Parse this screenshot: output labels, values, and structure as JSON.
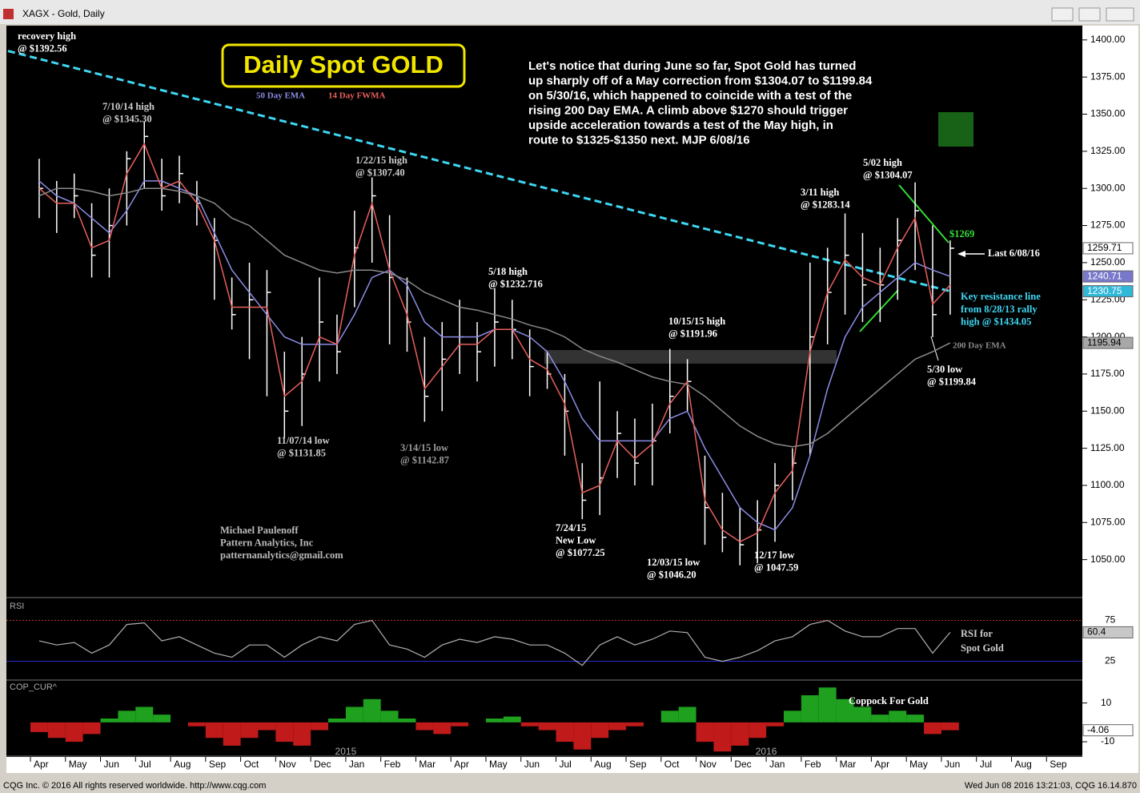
{
  "window": {
    "title": "XAGX - Gold, Daily"
  },
  "footer": {
    "left": "CQG Inc. © 2016 All rights reserved worldwide. http://www.cqg.com",
    "right": "Wed Jun 08 2016 13:21:03, CQG 16.14.870"
  },
  "chart_data": [
    {
      "type": "ohlc",
      "title": "Daily Spot GOLD",
      "categories": [
        "Apr",
        null,
        "May",
        null,
        "Jun",
        null,
        "Jul",
        null,
        "Aug",
        null,
        "Sep",
        null,
        "Oct",
        null,
        "Nov",
        null,
        "Dec",
        null,
        "Jan",
        null,
        "Feb",
        null,
        "Mar",
        null,
        "Apr",
        null,
        "May",
        null,
        "Jun",
        null,
        "Jul",
        null,
        "Aug",
        null,
        "Sep",
        null,
        "Oct",
        null,
        "Nov",
        null,
        "Dec",
        null,
        "Jan",
        null,
        "Feb",
        null,
        "Mar",
        null,
        "Apr",
        null,
        "May",
        null,
        "Jun",
        null,
        "Jul",
        null,
        "Aug",
        null,
        "Sep",
        null
      ],
      "year_labels": [
        "2015",
        "2016"
      ],
      "high": [
        1320,
        1305,
        1310,
        1290,
        1300,
        1325,
        1345.3,
        1320,
        1322,
        1305,
        1280,
        1240,
        1250,
        1245,
        1190,
        1200,
        1240,
        1215,
        1285,
        1307.4,
        1282,
        1240,
        1200,
        1210,
        1225,
        1210,
        1232.716,
        1225,
        1205,
        1190,
        1175,
        1115,
        1170,
        1150,
        1145,
        1155,
        1191.96,
        1185,
        1120,
        1095,
        1085,
        1090,
        1115,
        1125,
        1250,
        1260,
        1283.14,
        1270,
        1260,
        1280,
        1304.07,
        1275,
        1265,
        null,
        null,
        null,
        null,
        null,
        null,
        null
      ],
      "low": [
        1280,
        1270,
        1280,
        1240,
        1240,
        1275,
        1300,
        1285,
        1290,
        1275,
        1225,
        1205,
        1185,
        1160,
        1131.85,
        1140,
        1170,
        1175,
        1220,
        1250,
        1195,
        1190,
        1142.87,
        1150,
        1175,
        1170,
        1180,
        1185,
        1160,
        1165,
        1120,
        1077.25,
        1080,
        1105,
        1100,
        1100,
        1135,
        1150,
        1060,
        1055,
        1046.2,
        1047.59,
        1062,
        1090,
        1120,
        1195,
        1215,
        1210,
        1210,
        1225,
        1245,
        1199.84,
        1215,
        null,
        null,
        null,
        null,
        null,
        null,
        null
      ],
      "close": [
        1300,
        1290,
        1295,
        1255,
        1275,
        1320,
        1335,
        1295,
        1310,
        1290,
        1265,
        1215,
        1225,
        1230,
        1150,
        1175,
        1210,
        1190,
        1260,
        1295,
        1240,
        1210,
        1160,
        1185,
        1200,
        1190,
        1210,
        1205,
        1180,
        1175,
        1150,
        1090,
        1105,
        1135,
        1115,
        1130,
        1160,
        1170,
        1085,
        1065,
        1060,
        1070,
        1100,
        1115,
        1200,
        1230,
        1255,
        1235,
        1235,
        1265,
        1285,
        1215,
        1259.71,
        null,
        null,
        null,
        null,
        null,
        null,
        null
      ],
      "bar_color": "#ffffff",
      "series": [
        {
          "name": "50 Day EMA",
          "color": "#8c8ce6",
          "values": [
            1305,
            1295,
            1290,
            1280,
            1270,
            1285,
            1305,
            1305,
            1300,
            1295,
            1270,
            1245,
            1230,
            1215,
            1200,
            1195,
            1195,
            1195,
            1215,
            1240,
            1245,
            1235,
            1210,
            1200,
            1200,
            1200,
            1205,
            1205,
            1200,
            1190,
            1170,
            1145,
            1130,
            1130,
            1130,
            1130,
            1145,
            1150,
            1125,
            1105,
            1085,
            1075,
            1070,
            1085,
            1120,
            1165,
            1200,
            1220,
            1230,
            1240,
            1250,
            1245,
            1240.71,
            null,
            null,
            null,
            null,
            null,
            null,
            null
          ]
        },
        {
          "name": "14 Day FWMA",
          "color": "#e8605c",
          "values": [
            1300,
            1290,
            1290,
            1260,
            1265,
            1310,
            1330,
            1300,
            1305,
            1290,
            1265,
            1220,
            1220,
            1220,
            1160,
            1170,
            1200,
            1195,
            1255,
            1290,
            1245,
            1215,
            1165,
            1180,
            1195,
            1195,
            1205,
            1205,
            1185,
            1178,
            1155,
            1095,
            1100,
            1130,
            1118,
            1128,
            1155,
            1170,
            1090,
            1070,
            1062,
            1068,
            1095,
            1110,
            1190,
            1230,
            1252,
            1240,
            1235,
            1260,
            1280,
            1222,
            1235,
            null,
            null,
            null,
            null,
            null,
            null,
            null
          ]
        },
        {
          "name": "200 Day EMA",
          "color": "#8a8a8a",
          "values": [
            1295,
            1300,
            1300,
            1298,
            1295,
            1297,
            1300,
            1300,
            1298,
            1295,
            1290,
            1280,
            1275,
            1265,
            1255,
            1250,
            1245,
            1243,
            1245,
            1245,
            1243,
            1238,
            1230,
            1225,
            1220,
            1218,
            1215,
            1212,
            1208,
            1205,
            1200,
            1192,
            1187,
            1183,
            1178,
            1173,
            1170,
            1168,
            1160,
            1150,
            1140,
            1133,
            1128,
            1126,
            1128,
            1135,
            1145,
            1155,
            1165,
            1175,
            1185,
            1190,
            1195.94,
            null,
            null,
            null,
            null,
            null,
            null,
            null
          ]
        }
      ],
      "trendline": {
        "name": "Key resistance line",
        "color": "#3fd6f2",
        "values": [
          1392.56,
          1230.75
        ]
      },
      "ylim": [
        1025,
        1408
      ],
      "yticks": [
        {
          "value": 1050,
          "label": "1050.00"
        },
        {
          "value": 1075,
          "label": "1075.00"
        },
        {
          "value": 1100,
          "label": "1100.00"
        },
        {
          "value": 1125,
          "label": "1125.00"
        },
        {
          "value": 1150,
          "label": "1150.00"
        },
        {
          "value": 1175,
          "label": "1175.00"
        },
        {
          "value": 1200,
          "label": "1200.00"
        },
        {
          "value": 1225,
          "label": "1225.00"
        },
        {
          "value": 1250,
          "label": "1250.00"
        },
        {
          "value": 1275,
          "label": "1275.00"
        },
        {
          "value": 1300,
          "label": "1300.00"
        },
        {
          "value": 1325,
          "label": "1325.00"
        },
        {
          "value": 1350,
          "label": "1350.00"
        },
        {
          "value": 1375,
          "label": "1375.00"
        },
        {
          "value": 1400,
          "label": "1400.00"
        }
      ],
      "annotations": [
        {
          "lines": [
            "recovery high",
            "@ $1392.56"
          ],
          "color": "#ffffff"
        },
        {
          "lines": [
            "7/10/14 high",
            "@ $1345.30"
          ],
          "color": "#cccccc"
        },
        {
          "lines": [
            "1/22/15 high",
            "@ $1307.40"
          ],
          "color": "#cccccc"
        },
        {
          "lines": [
            "5/18 high",
            "@ $1232.716"
          ],
          "color": "#ffffff"
        },
        {
          "lines": [
            "10/15/15 high",
            "@ $1191.96"
          ],
          "color": "#ffffff"
        },
        {
          "lines": [
            "3/11 high",
            "@ $1283.14"
          ],
          "color": "#ffffff"
        },
        {
          "lines": [
            "5/02 high",
            "@ $1304.07"
          ],
          "color": "#ffffff"
        },
        {
          "lines": [
            "$1269"
          ],
          "color": "#33dd33"
        },
        {
          "lines": [
            "Last 6/08/16"
          ],
          "color": "#ffffff"
        },
        {
          "lines": [
            "from 8/28/13 rally",
            "high @ $1434.05"
          ],
          "color": "#3fd6f2"
        },
        {
          "lines": [
            "5/30 low",
            "@ $1199.84"
          ],
          "color": "#ffffff"
        },
        {
          "lines": [
            "11/07/14 low",
            "@ $1131.85"
          ],
          "color": "#cccccc"
        },
        {
          "lines": [
            "3/14/15 low",
            "@ $1142.87"
          ],
          "color": "#999999"
        },
        {
          "lines": [
            "7/24/15",
            "New Low",
            "@ $1077.25"
          ],
          "color": "#ffffff"
        },
        {
          "lines": [
            "12/03/15 low",
            "@ $1046.20"
          ],
          "color": "#ffffff"
        },
        {
          "lines": [
            "12/17 low",
            "@ 1047.59"
          ],
          "color": "#ffffff"
        },
        {
          "lines": [
            "Michael Paulenoff",
            "Pattern Analytics, Inc",
            "patternanalytics@gmail.com"
          ],
          "color": "#bbbbbb"
        },
        {
          "lines": [
            "Let's notice that during June so far, Spot Gold has turned",
            "up sharply off of a May correction from $1304.07 to $1199.84",
            "on 5/30/16, which happened to coincide with a test of the",
            "rising 200 Day EMA. A climb above $1270 should trigger",
            "upside acceleration towards a test of the May high, in",
            "route to $1325-$1350 next.  MJP 6/08/16"
          ],
          "color": "#ffffff"
        }
      ]
    },
    {
      "type": "line",
      "title": "RSI",
      "color": "#b0b0b0",
      "values": [
        50,
        45,
        48,
        35,
        45,
        70,
        72,
        50,
        55,
        45,
        35,
        30,
        45,
        45,
        30,
        45,
        55,
        50,
        70,
        75,
        45,
        40,
        30,
        45,
        52,
        48,
        55,
        52,
        45,
        45,
        35,
        20,
        45,
        55,
        45,
        52,
        62,
        60,
        30,
        25,
        30,
        38,
        50,
        55,
        70,
        75,
        62,
        55,
        55,
        65,
        65,
        35,
        60.4,
        null,
        null,
        null,
        null,
        null,
        null,
        null
      ],
      "ylim": [
        3,
        102
      ],
      "yticks": [
        25,
        75
      ],
      "level_colors": [
        "#2a2ad0",
        "#c03030"
      ],
      "annotations": [
        {
          "lines": [
            "RSI for",
            "Spot Gold"
          ],
          "color": "#cccccc"
        }
      ]
    },
    {
      "type": "histogram",
      "title": "COP_CUR^",
      "colors": {
        "positive": "#1fa01f",
        "negative": "#c01a1a"
      },
      "values": [
        -5,
        -8,
        -10,
        -6,
        2,
        6,
        8,
        4,
        0,
        -2,
        -8,
        -12,
        -8,
        -4,
        -10,
        -12,
        -4,
        2,
        8,
        12,
        6,
        2,
        -4,
        -6,
        -2,
        0,
        2,
        3,
        -2,
        -4,
        -10,
        -14,
        -8,
        -4,
        -2,
        0,
        6,
        8,
        -10,
        -15,
        -12,
        -8,
        -2,
        6,
        14,
        18,
        12,
        8,
        4,
        6,
        4,
        -6,
        -4.06,
        null,
        null,
        null,
        null,
        null,
        null,
        null
      ],
      "ylim": [
        -17,
        21
      ],
      "yticks": [
        10,
        -10
      ],
      "annotations": [
        {
          "lines": [
            "Coppock For Gold"
          ],
          "color": "#ffffff"
        }
      ]
    }
  ]
}
